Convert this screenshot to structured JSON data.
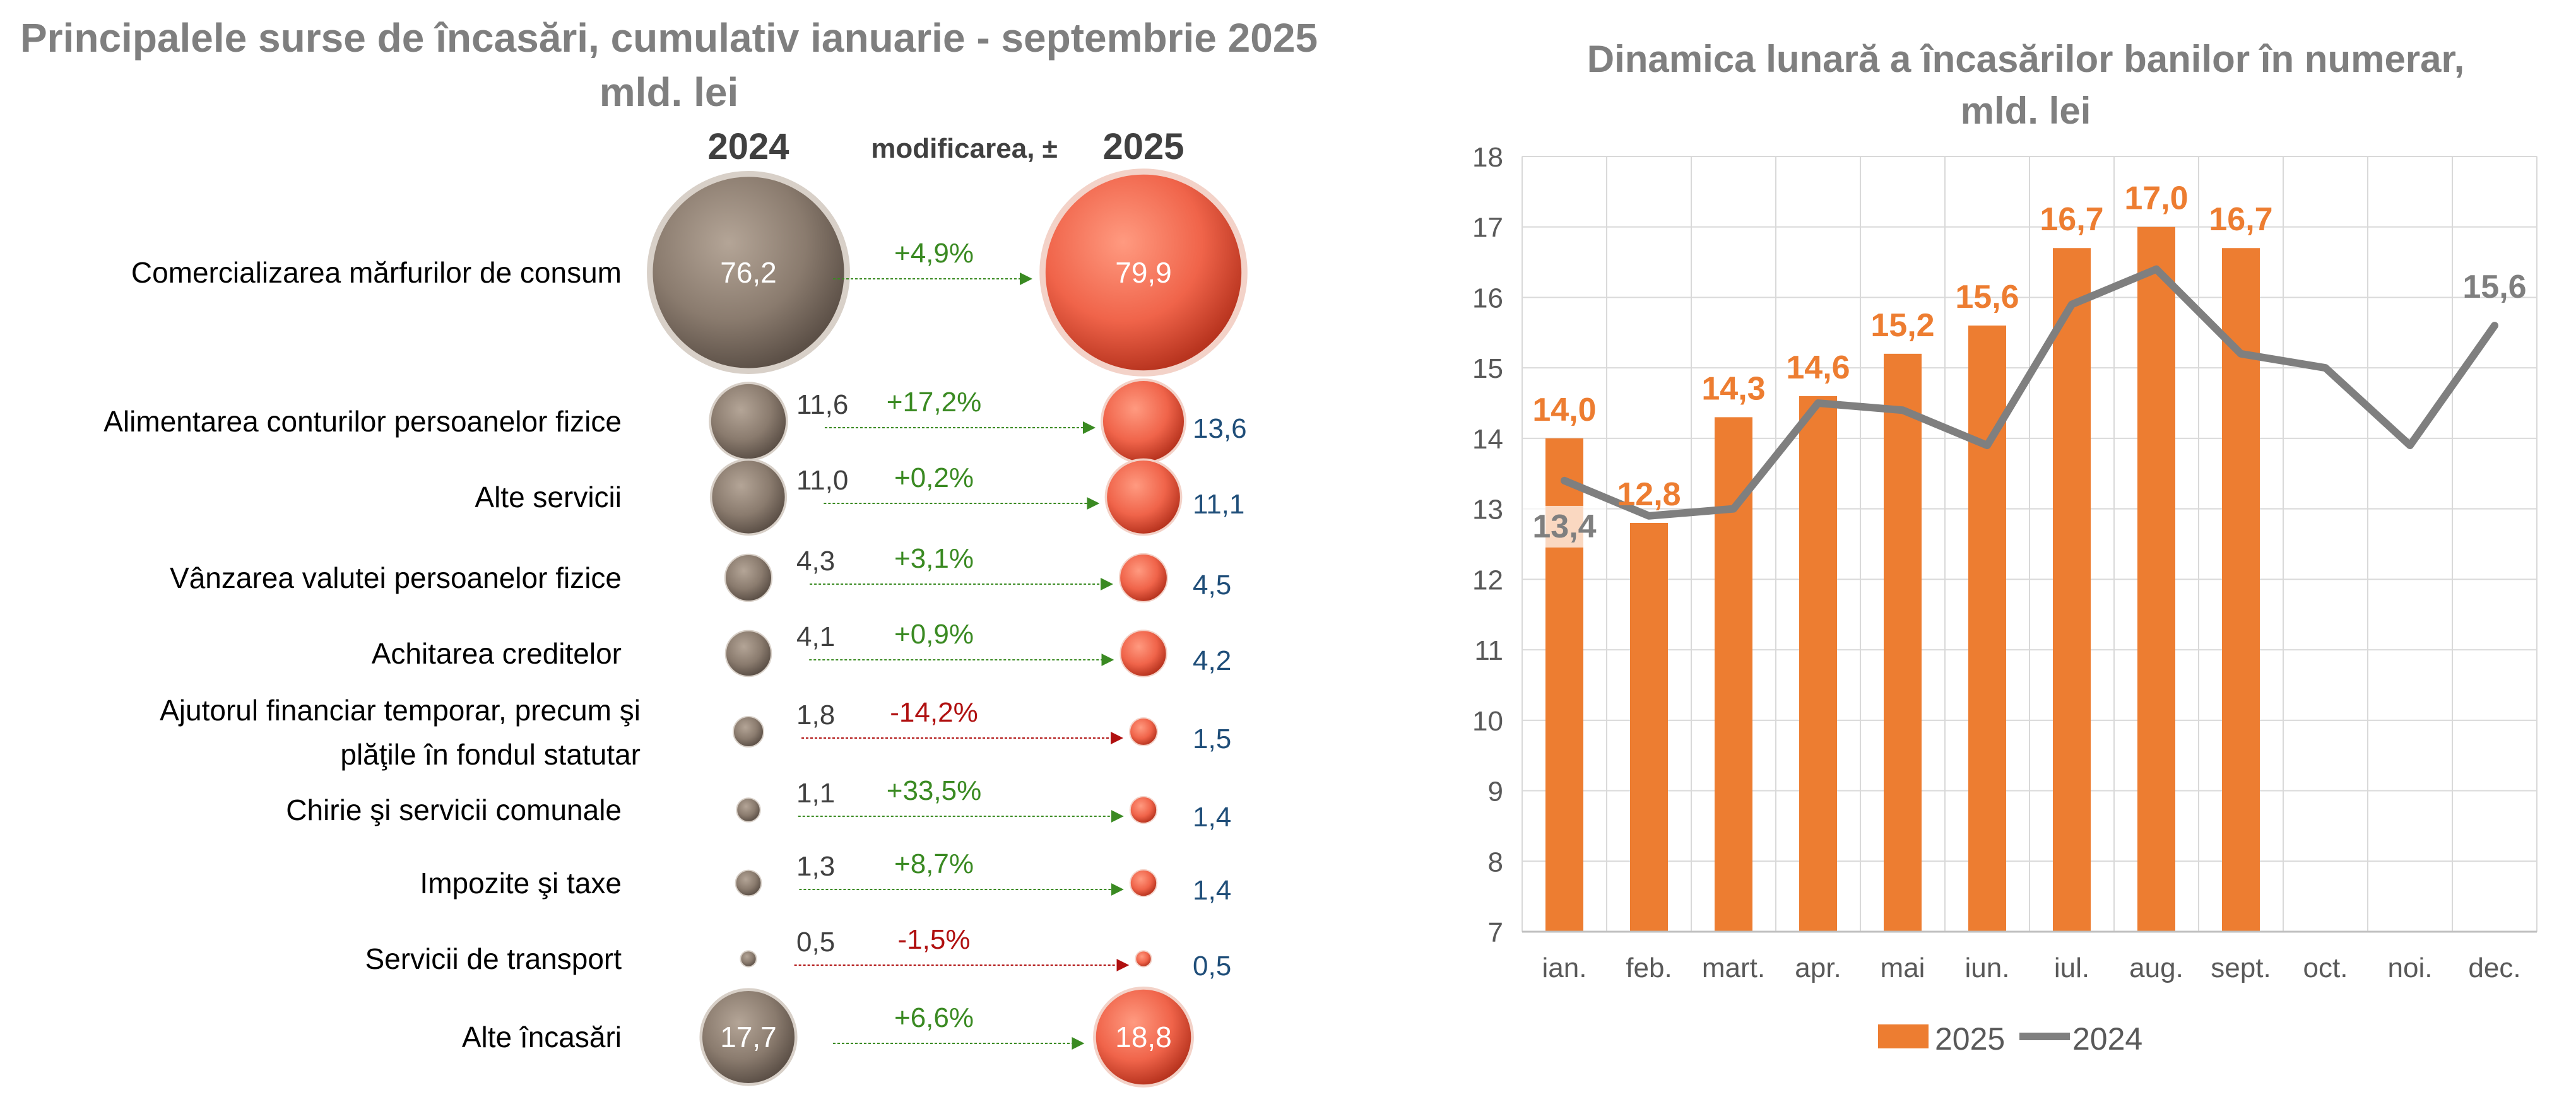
{
  "bubble_chart": {
    "title_line1": "Principalele surse de încasări, cumulativ ianuarie - septembrie 2025",
    "title_line2": "mld. lei",
    "header_2024": "2024",
    "header_change": "modificarea, ±",
    "header_2025": "2025",
    "colors": {
      "y2024": "#8a7b6e",
      "y2025": "#f0644a",
      "positive": "#3a8a22",
      "negative": "#b01010",
      "label_2025": "#1f4e79"
    },
    "rows": [
      {
        "label": [
          "Comercializarea mărfurilor de consum"
        ],
        "v2024": "76,2",
        "change": "+4,9%",
        "v2025": "79,9",
        "n2024": 76.2,
        "n2025": 79.9,
        "positive": true
      },
      {
        "label": [
          "Alimentarea conturilor persoanelor fizice"
        ],
        "v2024": "11,6",
        "change": "+17,2%",
        "v2025": "13,6",
        "n2024": 11.6,
        "n2025": 13.6,
        "positive": true
      },
      {
        "label": [
          "Alte servicii"
        ],
        "v2024": "11,0",
        "change": "+0,2%",
        "v2025": "11,1",
        "n2024": 11.0,
        "n2025": 11.1,
        "positive": true
      },
      {
        "label": [
          "Vânzarea valutei persoanelor fizice"
        ],
        "v2024": "4,3",
        "change": "+3,1%",
        "v2025": "4,5",
        "n2024": 4.3,
        "n2025": 4.5,
        "positive": true
      },
      {
        "label": [
          "Achitarea creditelor"
        ],
        "v2024": "4,1",
        "change": "+0,9%",
        "v2025": "4,2",
        "n2024": 4.1,
        "n2025": 4.2,
        "positive": true
      },
      {
        "label": [
          "Ajutorul financiar temporar, precum şi",
          "plăţile în fondul statutar"
        ],
        "v2024": "1,8",
        "change": "-14,2%",
        "v2025": "1,5",
        "n2024": 1.8,
        "n2025": 1.5,
        "positive": false
      },
      {
        "label": [
          "Chirie şi servicii comunale"
        ],
        "v2024": "1,1",
        "change": "+33,5%",
        "v2025": "1,4",
        "n2024": 1.1,
        "n2025": 1.4,
        "positive": true
      },
      {
        "label": [
          "Impozite şi taxe"
        ],
        "v2024": "1,3",
        "change": "+8,7%",
        "v2025": "1,4",
        "n2024": 1.3,
        "n2025": 1.4,
        "positive": true
      },
      {
        "label": [
          "Servicii de transport"
        ],
        "v2024": "0,5",
        "change": "-1,5%",
        "v2025": "0,5",
        "n2024": 0.5,
        "n2025": 0.5,
        "positive": false
      },
      {
        "label": [
          "Alte încasări"
        ],
        "v2024": "17,7",
        "change": "+6,6%",
        "v2025": "18,8",
        "n2024": 17.7,
        "n2025": 18.8,
        "positive": true
      }
    ]
  },
  "chart_data": {
    "type": "bar",
    "title_line1": "Dinamica lunară a încasărilor banilor în numerar,",
    "title_line2": "mld. lei",
    "categories": [
      "ian.",
      "feb.",
      "mart.",
      "apr.",
      "mai",
      "iun.",
      "iul.",
      "aug.",
      "sept.",
      "oct.",
      "noi.",
      "dec."
    ],
    "series": [
      {
        "name": "2025",
        "type": "bar",
        "color": "#ed7d31",
        "values": [
          14.0,
          12.8,
          14.3,
          14.6,
          15.2,
          15.6,
          16.7,
          17.0,
          16.7,
          null,
          null,
          null
        ]
      },
      {
        "name": "2024",
        "type": "line",
        "color": "#7f7f7f",
        "values": [
          13.4,
          12.9,
          13.0,
          14.5,
          14.4,
          13.9,
          15.9,
          16.4,
          15.2,
          15.0,
          13.9,
          15.6
        ]
      }
    ],
    "bar_labels": [
      "14,0",
      "12,8",
      "14,3",
      "14,6",
      "15,2",
      "15,6",
      "16,7",
      "17,0",
      "16,7"
    ],
    "line_labels": {
      "first": "13,4",
      "last": "15,6"
    },
    "yticks": [
      7,
      8,
      9,
      10,
      11,
      12,
      13,
      14,
      15,
      16,
      17,
      18
    ],
    "ylim": [
      7,
      18
    ],
    "grid": true,
    "legend_position": "bottom"
  }
}
